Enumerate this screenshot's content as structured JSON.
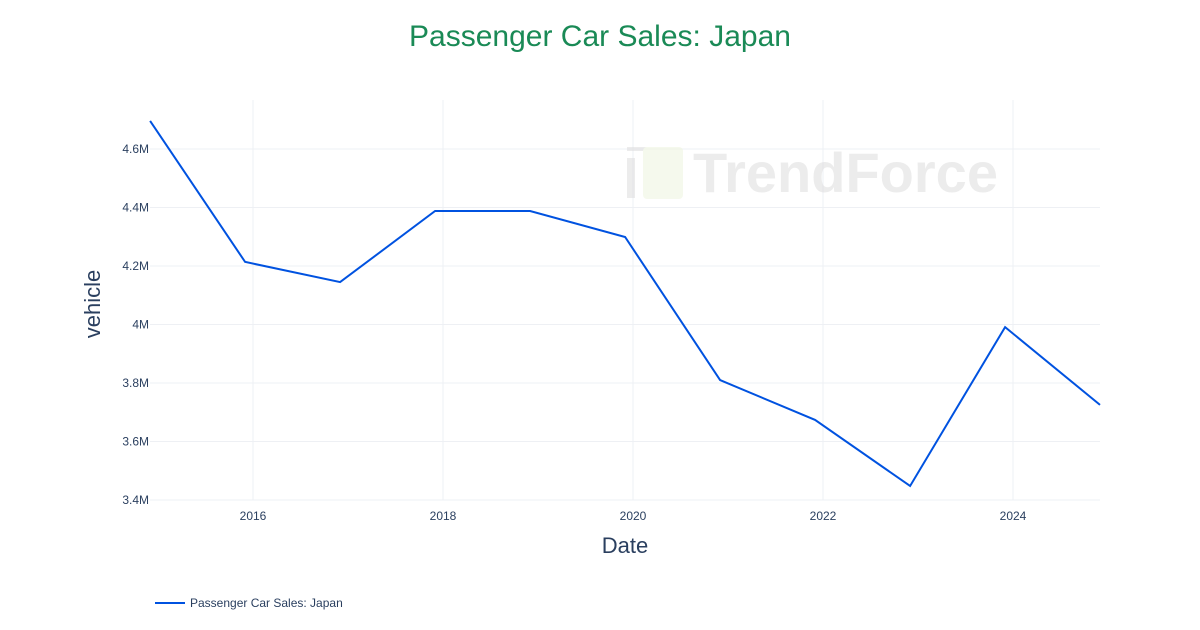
{
  "chart_data": {
    "type": "line",
    "title": "Passenger Car Sales: Japan",
    "xlabel": "Date",
    "ylabel": "vehicle",
    "x": [
      "2014-12",
      "2015-12",
      "2016-12",
      "2017-12",
      "2018-12",
      "2019-12",
      "2020-12",
      "2021-12",
      "2022-12",
      "2023-12",
      "2024-12"
    ],
    "series": [
      {
        "name": "Passenger Car Sales: Japan",
        "color": "#0052e0",
        "values": [
          4696000,
          4214000,
          4145000,
          4388000,
          4388000,
          4299000,
          3810000,
          3674000,
          3448000,
          3991000,
          3725000
        ]
      }
    ],
    "xticks": [
      "2016",
      "2018",
      "2020",
      "2022",
      "2024"
    ],
    "yticks": [
      {
        "value": 3400000,
        "label": "3.4M"
      },
      {
        "value": 3600000,
        "label": "3.6M"
      },
      {
        "value": 3800000,
        "label": "3.8M"
      },
      {
        "value": 4000000,
        "label": "4M"
      },
      {
        "value": 4200000,
        "label": "4.2M"
      },
      {
        "value": 4400000,
        "label": "4.4M"
      },
      {
        "value": 4600000,
        "label": "4.6M"
      }
    ],
    "grid": true,
    "legend_position": "bottom-left",
    "watermark": "TrendForce"
  }
}
